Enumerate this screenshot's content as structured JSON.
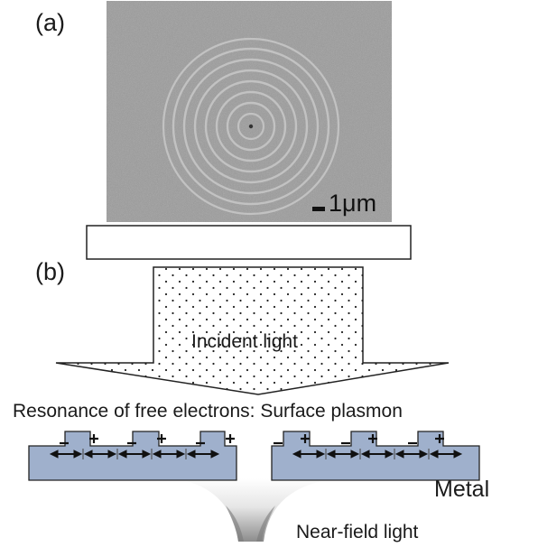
{
  "panel_a": {
    "label": "(a)",
    "scale_bar_label": "1μm"
  },
  "panel_b": {
    "label": "(b)",
    "incident_light_label": "Incident light",
    "resonance_label": "Resonance of free electrons: Surface plasmon",
    "metal_label": "Metal",
    "near_field_label": "Near-field light"
  },
  "colors": {
    "sem_background": "#9a9a9a",
    "metal_fill": "#9fb0cc",
    "outline": "#222222",
    "near_field_glow": "#8c8c8c"
  },
  "icons": [
    "sem-image",
    "incident-light-arrow",
    "charge-arrow-icon",
    "plus-sign-icon",
    "minus-sign-icon"
  ]
}
